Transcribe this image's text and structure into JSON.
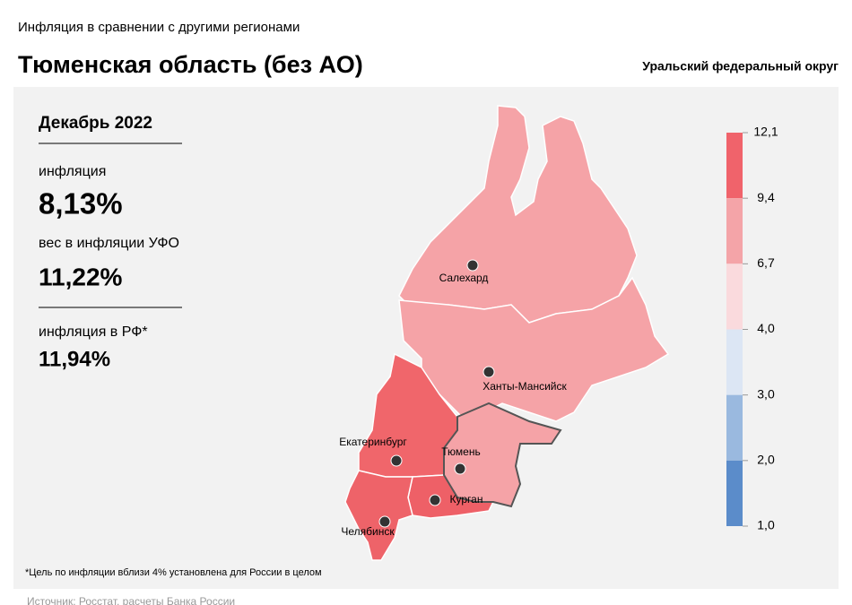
{
  "header": {
    "subtitle": "Инфляция  в сравнении  с другими  регионами",
    "title": "Тюменская область (без АО)",
    "region": "Уральский федеральный округ"
  },
  "panel": {
    "period": "Декабрь 2022",
    "items": [
      {
        "label": "инфляция",
        "value": "8,13%"
      },
      {
        "label": "вес в инфляции  УФО",
        "value": "11,22%"
      },
      {
        "label": "инфляция  в РФ*",
        "value": "11,94%"
      }
    ]
  },
  "map": {
    "cities": [
      {
        "name": "Салехард"
      },
      {
        "name": "Ханты-Мансийск"
      },
      {
        "name": "Екатеринбург"
      },
      {
        "name": "Тюмень"
      },
      {
        "name": "Курган"
      },
      {
        "name": "Челябинск"
      }
    ]
  },
  "legend": {
    "ticks": [
      {
        "value": 12.1,
        "label": "12,1"
      },
      {
        "value": 9.4,
        "label": "9,4"
      },
      {
        "value": 6.7,
        "label": "6,7"
      },
      {
        "value": 4.0,
        "label": "4,0"
      },
      {
        "value": 3.0,
        "label": "3,0"
      },
      {
        "value": 2.0,
        "label": "2,0"
      },
      {
        "value": 1.0,
        "label": "1,0"
      }
    ],
    "colors": [
      "#f0636b",
      "#f4a4a8",
      "#fadadd",
      "#dce6f4",
      "#9ab9df",
      "#5b8cca"
    ]
  },
  "footnote": "*Цель по инфляции вблизи 4% установлена для России в целом",
  "source": "Источник: Росстат, расчеты Банка России"
}
